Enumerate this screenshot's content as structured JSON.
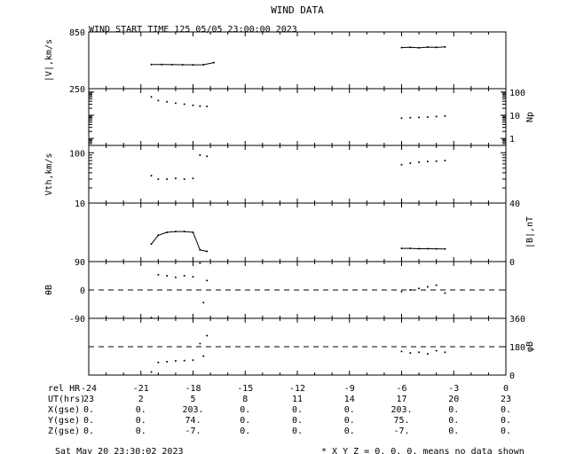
{
  "title": "WIND DATA",
  "subtitle": "WIND START TIME 125 05/05 23:00:00 2023",
  "chart_data": [
    {
      "type": "line",
      "panel": "speed",
      "ylabel": "|V|,km/s",
      "ylim": [
        250,
        850
      ],
      "ytick_labels": [
        "850",
        "250"
      ],
      "x": [
        -20.4,
        -19.8,
        -19.2,
        -18.6,
        -18.0,
        -17.4,
        -16.8,
        -6.0,
        -5.5,
        -5.0,
        -4.5,
        -4.0,
        -3.5
      ],
      "series": [
        {
          "values": [
            505,
            505,
            504,
            503,
            502,
            503,
            525,
            null,
            null,
            null,
            null,
            null,
            null
          ]
        },
        {
          "values": [
            null,
            null,
            null,
            null,
            null,
            null,
            null,
            685,
            688,
            683,
            690,
            687,
            692
          ]
        }
      ]
    },
    {
      "type": "scatter",
      "panel": "density",
      "ylabel": "Np",
      "yscale": "log",
      "ylim": [
        0.5,
        140
      ],
      "ytick_labels": [
        "100",
        "10",
        "1"
      ],
      "x": [
        -20.4,
        -20.0,
        -19.5,
        -19.0,
        -18.5,
        -18.0,
        -17.6,
        -17.2,
        -6.0,
        -5.5,
        -5.0,
        -4.5,
        -4.0,
        -3.5
      ],
      "series": [
        {
          "values": [
            62,
            43,
            38,
            33,
            30,
            27,
            25,
            24,
            null,
            null,
            null,
            null,
            null,
            null
          ]
        },
        {
          "values": [
            null,
            null,
            null,
            null,
            null,
            null,
            null,
            null,
            7.5,
            7.8,
            8.1,
            8.4,
            8.8,
            9.2
          ]
        }
      ]
    },
    {
      "type": "scatter",
      "panel": "thermal-speed",
      "ylabel": "Vth,km/s",
      "yscale": "log",
      "ylim": [
        10,
        140
      ],
      "ytick_labels": [
        "100",
        "10"
      ],
      "x": [
        -20.4,
        -20.0,
        -19.5,
        -19.0,
        -18.5,
        -18.0,
        -17.6,
        -17.2,
        -6.0,
        -5.5,
        -5.0,
        -4.5,
        -4.0,
        -3.5
      ],
      "series": [
        {
          "values": [
            35,
            30,
            30,
            31,
            30,
            31,
            90,
            85,
            null,
            null,
            null,
            null,
            null,
            null
          ]
        },
        {
          "values": [
            null,
            null,
            null,
            null,
            null,
            null,
            null,
            null,
            58,
            62,
            65,
            67,
            68,
            70
          ]
        }
      ]
    },
    {
      "type": "line",
      "panel": "field-magnitude",
      "ylabel": "|B|,nT",
      "ylim": [
        0,
        40
      ],
      "ytick_labels": [
        "40",
        "0"
      ],
      "x": [
        -20.4,
        -20.0,
        -19.5,
        -19.0,
        -18.5,
        -18.0,
        -17.6,
        -17.2,
        -6.0,
        -5.5,
        -5.0,
        -4.5,
        -4.0,
        -3.5
      ],
      "series": [
        {
          "values": [
            12,
            18,
            20,
            20.5,
            20.5,
            20,
            8,
            7,
            null,
            null,
            null,
            null,
            null,
            null
          ]
        },
        {
          "values": [
            null,
            null,
            null,
            null,
            null,
            null,
            null,
            null,
            9,
            9,
            8.8,
            8.8,
            8.7,
            8.6
          ]
        }
      ]
    },
    {
      "type": "scatter",
      "panel": "field-latitude",
      "ylabel": "θB",
      "ylim": [
        -90,
        90
      ],
      "ytick_labels": [
        "90",
        "0",
        "-90"
      ],
      "x": [
        -20.4,
        -20.0,
        -19.5,
        -19.0,
        -18.5,
        -18.0,
        -17.6,
        -17.4,
        -17.2,
        -6.0,
        -5.5,
        -5.0,
        -4.5,
        -4.0,
        -3.5
      ],
      "series": [
        {
          "values": [
            -88,
            48,
            45,
            40,
            45,
            42,
            85,
            -40,
            30,
            null,
            null,
            null,
            null,
            null,
            null
          ]
        },
        {
          "values": [
            null,
            null,
            null,
            null,
            null,
            null,
            null,
            null,
            null,
            -5,
            0,
            5,
            10,
            15,
            -10
          ]
        }
      ]
    },
    {
      "type": "scatter",
      "panel": "field-longitude",
      "ylabel": "φB",
      "ylim": [
        0,
        360
      ],
      "ytick_labels": [
        "360",
        "180",
        "0"
      ],
      "x": [
        -20.4,
        -20.0,
        -19.5,
        -19.0,
        -18.5,
        -18.0,
        -17.6,
        -17.4,
        -17.2,
        -6.0,
        -5.5,
        -5.0,
        -4.5,
        -4.0,
        -3.5
      ],
      "series": [
        {
          "values": [
            20,
            80,
            85,
            90,
            92,
            95,
            200,
            120,
            250,
            null,
            null,
            null,
            null,
            null,
            null
          ]
        },
        {
          "values": [
            null,
            null,
            null,
            null,
            null,
            null,
            null,
            null,
            null,
            150,
            140,
            145,
            135,
            155,
            145
          ]
        }
      ]
    }
  ],
  "reference_line_labels": [],
  "x_axis": {
    "rows": [
      {
        "label": "rel HR",
        "values": [
          "-24",
          "-21",
          "-18",
          "-15",
          "-12",
          "-9",
          "-6",
          "-3",
          "0"
        ]
      },
      {
        "label": "UT(hrs)",
        "values": [
          "23",
          "2",
          "5",
          "8",
          "11",
          "14",
          "17",
          "20",
          "23"
        ]
      },
      {
        "label": "X(gse)",
        "values": [
          "0.",
          "0.",
          "203.",
          "0.",
          "0.",
          "0.",
          "203.",
          "0.",
          "0."
        ]
      },
      {
        "label": "Y(gse)",
        "values": [
          "0.",
          "0.",
          "74.",
          "0.",
          "0.",
          "0.",
          "75.",
          "0.",
          "0."
        ]
      },
      {
        "label": "Z(gse)",
        "values": [
          "0.",
          "0.",
          "-7.",
          "0.",
          "0.",
          "0.",
          "-7.",
          "0.",
          "0."
        ]
      }
    ]
  },
  "footer": {
    "timestamp": "Sat May 20 23:30:02 2023",
    "note": "* X Y Z = 0. 0. 0. means no data shown"
  }
}
